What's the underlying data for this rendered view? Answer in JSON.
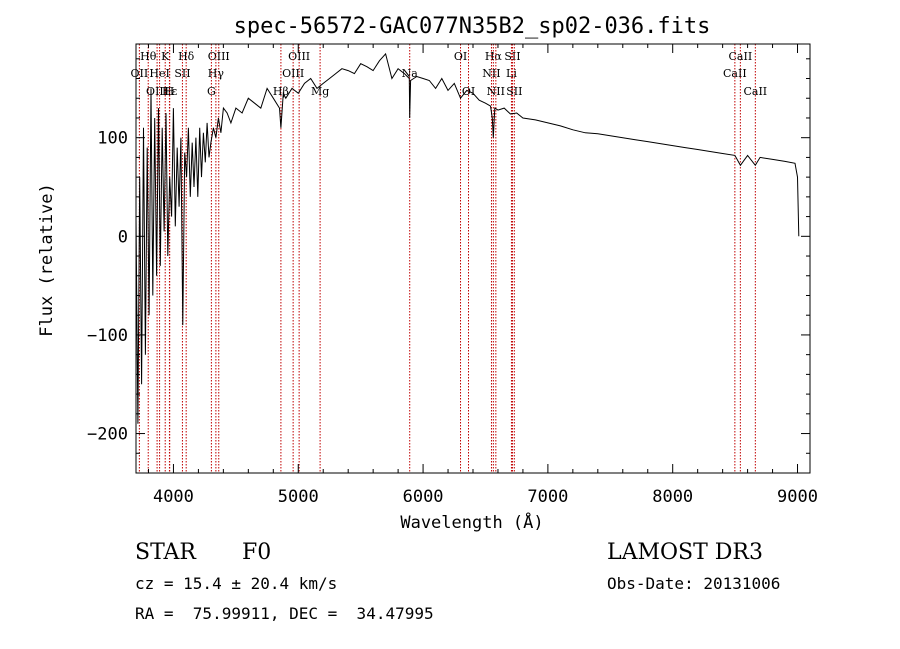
{
  "chart_data": {
    "type": "line",
    "title": "spec-56572-GAC077N35B2_sp02-036.fits",
    "xlabel": "Wavelength (Å)",
    "ylabel": "Flux (relative)",
    "xlim": [
      3700,
      9100
    ],
    "ylim": [
      -240,
      195
    ],
    "xticks": [
      4000,
      5000,
      6000,
      7000,
      8000,
      9000
    ],
    "yticks": [
      -200,
      -100,
      0,
      100
    ],
    "grid": false,
    "series": [
      {
        "name": "flux",
        "x": [
          3700,
          3715,
          3730,
          3745,
          3760,
          3775,
          3790,
          3805,
          3820,
          3835,
          3850,
          3865,
          3880,
          3895,
          3910,
          3925,
          3940,
          3955,
          3970,
          3985,
          4000,
          4015,
          4030,
          4045,
          4060,
          4075,
          4090,
          4105,
          4120,
          4135,
          4150,
          4165,
          4180,
          4195,
          4210,
          4225,
          4240,
          4255,
          4270,
          4285,
          4300,
          4320,
          4340,
          4360,
          4380,
          4400,
          4430,
          4460,
          4500,
          4550,
          4600,
          4650,
          4700,
          4750,
          4800,
          4850,
          4861,
          4880,
          4900,
          4950,
          5000,
          5050,
          5100,
          5150,
          5200,
          5250,
          5300,
          5350,
          5400,
          5450,
          5500,
          5550,
          5600,
          5650,
          5700,
          5750,
          5800,
          5850,
          5890,
          5893,
          5900,
          5950,
          6000,
          6050,
          6100,
          6150,
          6200,
          6250,
          6300,
          6350,
          6400,
          6450,
          6500,
          6540,
          6555,
          6563,
          6575,
          6600,
          6650,
          6700,
          6750,
          6800,
          6900,
          7000,
          7100,
          7200,
          7300,
          7400,
          7500,
          7600,
          7700,
          7800,
          7900,
          8000,
          8100,
          8200,
          8300,
          8400,
          8498,
          8542,
          8600,
          8662,
          8700,
          8800,
          8900,
          8980,
          9000,
          9010
        ],
        "values": [
          20,
          -190,
          60,
          -150,
          110,
          -120,
          90,
          -80,
          150,
          -60,
          120,
          -40,
          130,
          -30,
          110,
          5,
          125,
          -20,
          60,
          20,
          130,
          10,
          90,
          30,
          100,
          -90,
          85,
          60,
          110,
          40,
          95,
          50,
          100,
          40,
          110,
          60,
          105,
          75,
          115,
          80,
          95,
          110,
          100,
          120,
          105,
          130,
          125,
          115,
          130,
          125,
          140,
          135,
          130,
          150,
          140,
          130,
          110,
          145,
          140,
          150,
          145,
          155,
          160,
          150,
          155,
          160,
          165,
          170,
          168,
          165,
          175,
          172,
          168,
          178,
          185,
          160,
          170,
          165,
          160,
          120,
          158,
          162,
          160,
          158,
          150,
          160,
          148,
          155,
          140,
          148,
          145,
          138,
          135,
          132,
          120,
          100,
          130,
          128,
          130,
          124,
          125,
          120,
          118,
          115,
          112,
          108,
          105,
          104,
          102,
          100,
          98,
          96,
          94,
          92,
          90,
          88,
          86,
          84,
          82,
          72,
          82,
          72,
          80,
          78,
          76,
          74,
          60,
          0
        ]
      }
    ],
    "lines": [
      {
        "name": "Hθ",
        "x": 3798,
        "row": 0
      },
      {
        "name": "OII",
        "x": 3727,
        "row": 1
      },
      {
        "name": "OIII",
        "x": 3869,
        "row": 2
      },
      {
        "name": "K",
        "x": 3934,
        "row": 0
      },
      {
        "name": "HeI",
        "x": 3889,
        "row": 1
      },
      {
        "name": "Hε",
        "x": 3970,
        "row": 2
      },
      {
        "name": "Hδ",
        "x": 4102,
        "row": 0
      },
      {
        "name": "SII",
        "x": 4072,
        "row": 1
      },
      {
        "name": "H",
        "x": 3968,
        "row": 2
      },
      {
        "name": "OIII",
        "x": 4363,
        "row": 0
      },
      {
        "name": "Hγ",
        "x": 4340,
        "row": 1
      },
      {
        "name": "G",
        "x": 4304,
        "row": 2
      },
      {
        "name": "OIII",
        "x": 5007,
        "row": 0
      },
      {
        "name": "OIII",
        "x": 4959,
        "row": 1
      },
      {
        "name": "Hβ",
        "x": 4861,
        "row": 2
      },
      {
        "name": "Mg",
        "x": 5175,
        "row": 2
      },
      {
        "name": "Na",
        "x": 5893,
        "row": 1
      },
      {
        "name": "OI",
        "x": 6300,
        "row": 0
      },
      {
        "name": "OI",
        "x": 6364,
        "row": 2
      },
      {
        "name": "Hα",
        "x": 6563,
        "row": 0
      },
      {
        "name": "NII",
        "x": 6548,
        "row": 1
      },
      {
        "name": "NII",
        "x": 6583,
        "row": 2
      },
      {
        "name": "SII",
        "x": 6716,
        "row": 0
      },
      {
        "name": "Li",
        "x": 6708,
        "row": 1
      },
      {
        "name": "SII",
        "x": 6731,
        "row": 2
      },
      {
        "name": "CaII",
        "x": 8542,
        "row": 0
      },
      {
        "name": "CaII",
        "x": 8498,
        "row": 1
      },
      {
        "name": "CaII",
        "x": 8662,
        "row": 2
      }
    ]
  },
  "info": {
    "class": "STAR",
    "subclass": "F0",
    "survey": "LAMOST DR3",
    "cz": "cz = 15.4 ± 20.4 km/s",
    "obs_date": "Obs-Date: 20131006",
    "radec": "RA =  75.99911, DEC =  34.47995"
  }
}
